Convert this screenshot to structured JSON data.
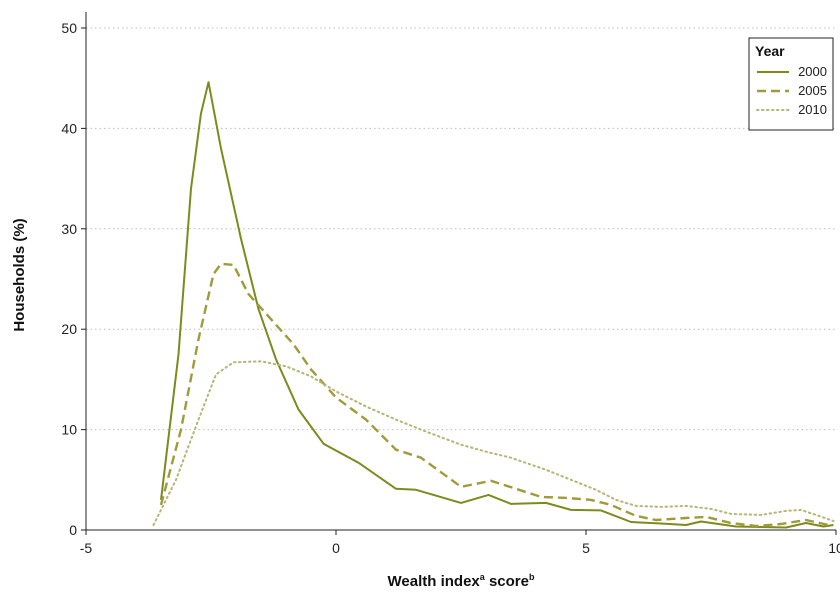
{
  "chart_data": {
    "type": "line",
    "title": "",
    "xlabel_main": "Wealth index",
    "xlabel_sup1": "a",
    "xlabel_mid": " score",
    "xlabel_sup2": "b",
    "ylabel": "Households (%)",
    "xlim": [
      -5,
      10
    ],
    "ylim": [
      0,
      50
    ],
    "xticks": [
      -5,
      0,
      5,
      10
    ],
    "yticks": [
      0,
      10,
      20,
      30,
      40,
      50
    ],
    "grid": "horizontal-dotted",
    "legend": {
      "title": "Year",
      "placement": "top-right"
    },
    "series": [
      {
        "name": "2000",
        "style": "solid",
        "color": "#7d8a1c",
        "points": [
          [
            -3.5,
            3
          ],
          [
            -3.15,
            17.5
          ],
          [
            -2.9,
            34
          ],
          [
            -2.7,
            41.5
          ],
          [
            -2.55,
            44.6
          ],
          [
            -2.3,
            38
          ],
          [
            -1.9,
            29
          ],
          [
            -1.55,
            22
          ],
          [
            -1.2,
            17
          ],
          [
            -0.75,
            12
          ],
          [
            -0.25,
            8.6
          ],
          [
            0.45,
            6.7
          ],
          [
            1.2,
            4.1
          ],
          [
            1.6,
            4.0
          ],
          [
            2.5,
            2.7
          ],
          [
            3.05,
            3.5
          ],
          [
            3.5,
            2.6
          ],
          [
            4.2,
            2.7
          ],
          [
            4.7,
            2.0
          ],
          [
            5.3,
            1.95
          ],
          [
            5.9,
            0.8
          ],
          [
            6.5,
            0.65
          ],
          [
            7.0,
            0.5
          ],
          [
            7.3,
            0.85
          ],
          [
            8.0,
            0.35
          ],
          [
            8.5,
            0.3
          ],
          [
            9.0,
            0.25
          ],
          [
            9.4,
            0.7
          ],
          [
            9.75,
            0.35
          ],
          [
            9.95,
            0.5
          ]
        ]
      },
      {
        "name": "2005",
        "style": "dashed",
        "color": "#a09a3a",
        "points": [
          [
            -3.5,
            2.5
          ],
          [
            -3.1,
            10
          ],
          [
            -2.75,
            19
          ],
          [
            -2.45,
            25.5
          ],
          [
            -2.3,
            26.5
          ],
          [
            -2.05,
            26.4
          ],
          [
            -1.75,
            23.5
          ],
          [
            -1.3,
            21
          ],
          [
            -0.85,
            18.5
          ],
          [
            -0.5,
            16
          ],
          [
            0,
            13.2
          ],
          [
            0.6,
            11
          ],
          [
            1.2,
            8
          ],
          [
            1.7,
            7.2
          ],
          [
            2.5,
            4.3
          ],
          [
            3.1,
            4.9
          ],
          [
            3.6,
            4.1
          ],
          [
            4.1,
            3.3
          ],
          [
            4.6,
            3.2
          ],
          [
            5.1,
            3.0
          ],
          [
            5.5,
            2.5
          ],
          [
            6.0,
            1.4
          ],
          [
            6.4,
            1.0
          ],
          [
            7.0,
            1.2
          ],
          [
            7.4,
            1.3
          ],
          [
            7.9,
            0.7
          ],
          [
            8.4,
            0.4
          ],
          [
            8.9,
            0.6
          ],
          [
            9.4,
            1.0
          ],
          [
            9.85,
            0.5
          ]
        ]
      },
      {
        "name": "2010",
        "style": "dotted",
        "color": "#b7b575",
        "points": [
          [
            -3.65,
            0.5
          ],
          [
            -3.2,
            5
          ],
          [
            -2.75,
            11
          ],
          [
            -2.4,
            15.5
          ],
          [
            -2.05,
            16.7
          ],
          [
            -1.5,
            16.8
          ],
          [
            -1.0,
            16.3
          ],
          [
            -0.5,
            15.3
          ],
          [
            0,
            13.8
          ],
          [
            0.6,
            12.3
          ],
          [
            1.2,
            11
          ],
          [
            1.8,
            9.8
          ],
          [
            2.5,
            8.5
          ],
          [
            3.0,
            7.8
          ],
          [
            3.5,
            7.2
          ],
          [
            4.2,
            6.0
          ],
          [
            4.7,
            5.0
          ],
          [
            5.2,
            4.0
          ],
          [
            5.6,
            3.0
          ],
          [
            6.0,
            2.4
          ],
          [
            6.5,
            2.3
          ],
          [
            7.0,
            2.4
          ],
          [
            7.5,
            2.1
          ],
          [
            7.9,
            1.6
          ],
          [
            8.5,
            1.5
          ],
          [
            9.0,
            1.9
          ],
          [
            9.3,
            2.0
          ],
          [
            9.6,
            1.5
          ],
          [
            9.95,
            0.9
          ]
        ]
      }
    ]
  }
}
